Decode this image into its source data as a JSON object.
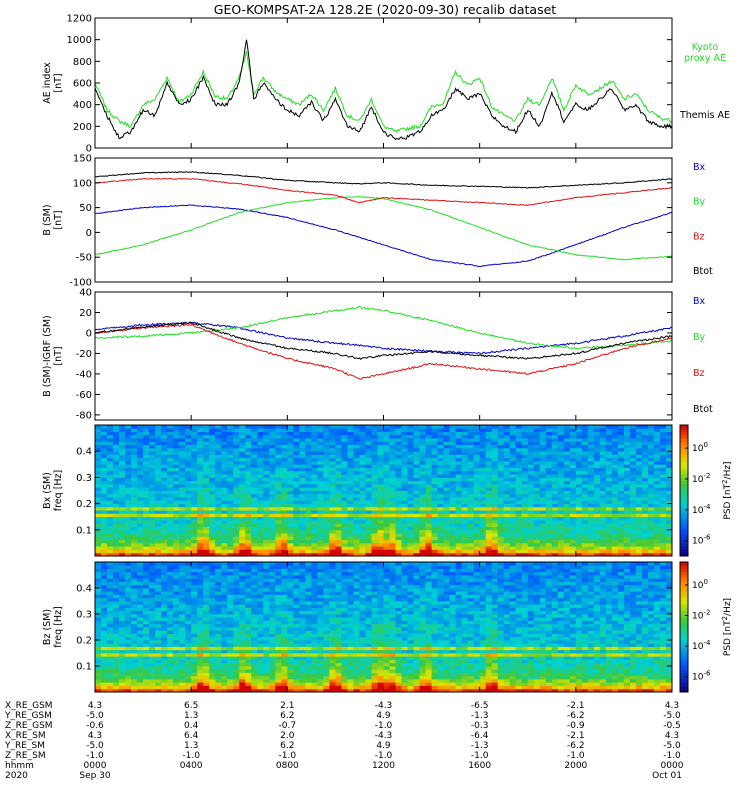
{
  "title": "GEO-KOMPSAT-2A 128.2E (2020-09-30) recalib dataset",
  "colors": {
    "black": "#000000",
    "blue": "#0000cc",
    "green": "#22dd22",
    "red": "#dd1111"
  },
  "chart_data": [
    {
      "type": "line",
      "ylabel_lines": [
        "AE index",
        "[nT]"
      ],
      "ylim": [
        0,
        1200
      ],
      "yticks": [
        0,
        200,
        400,
        600,
        800,
        1000,
        1200
      ],
      "legend_placement": "right",
      "series": [
        {
          "name": "Kyoto\nproxy AE",
          "color": "#22dd22",
          "x": [
            0,
            0.5,
            1,
            1.5,
            2,
            2.5,
            3,
            3.5,
            4,
            4.5,
            5,
            5.5,
            6,
            6.3,
            6.6,
            7,
            7.5,
            8,
            8.5,
            9,
            9.5,
            10,
            10.5,
            11,
            11.5,
            12,
            12.5,
            13,
            13.5,
            14,
            14.5,
            15,
            15.5,
            16,
            16.5,
            17,
            17.5,
            18,
            18.5,
            19,
            19.5,
            20,
            20.5,
            21,
            21.5,
            22,
            22.5,
            23,
            23.5,
            24
          ],
          "values": [
            600,
            350,
            250,
            200,
            400,
            450,
            650,
            420,
            500,
            700,
            480,
            450,
            650,
            880,
            500,
            650,
            520,
            450,
            400,
            500,
            350,
            550,
            300,
            250,
            450,
            200,
            150,
            180,
            200,
            380,
            420,
            700,
            580,
            650,
            380,
            300,
            250,
            450,
            400,
            650,
            350,
            580,
            500,
            550,
            620,
            450,
            500,
            350,
            280,
            250
          ]
        },
        {
          "name": "Themis AE",
          "color": "#000000",
          "x": [
            0,
            0.5,
            1,
            1.5,
            2,
            2.5,
            3,
            3.5,
            4,
            4.5,
            5,
            5.5,
            6,
            6.3,
            6.6,
            7,
            7.5,
            8,
            8.5,
            9,
            9.5,
            10,
            10.5,
            11,
            11.5,
            12,
            12.5,
            13,
            13.5,
            14,
            14.5,
            15,
            15.5,
            16,
            16.5,
            17,
            17.5,
            18,
            18.5,
            19,
            19.5,
            20,
            20.5,
            21,
            21.5,
            22,
            22.5,
            23,
            23.5,
            24
          ],
          "values": [
            550,
            300,
            100,
            150,
            350,
            300,
            600,
            400,
            450,
            650,
            400,
            400,
            600,
            1000,
            450,
            600,
            450,
            350,
            300,
            420,
            250,
            450,
            200,
            150,
            380,
            150,
            80,
            100,
            150,
            300,
            350,
            550,
            450,
            500,
            300,
            200,
            150,
            350,
            200,
            520,
            250,
            400,
            350,
            450,
            550,
            350,
            400,
            250,
            200,
            200
          ]
        }
      ]
    },
    {
      "type": "line",
      "ylabel_lines": [
        "B (SM)",
        "[nT]"
      ],
      "ylim": [
        -100,
        150
      ],
      "yticks": [
        -100,
        -50,
        0,
        50,
        100,
        150
      ],
      "legend_placement": "right",
      "series": [
        {
          "name": "Bx",
          "color": "#0000cc",
          "x": [
            0,
            2,
            4,
            6,
            8,
            10,
            11,
            12,
            14,
            16,
            18,
            20,
            22,
            24
          ],
          "values": [
            38,
            50,
            55,
            47,
            30,
            5,
            -10,
            -25,
            -55,
            -68,
            -58,
            -25,
            10,
            40
          ]
        },
        {
          "name": "By",
          "color": "#22dd22",
          "x": [
            0,
            2,
            4,
            6,
            8,
            10,
            11,
            12,
            14,
            16,
            18,
            20,
            22,
            24
          ],
          "values": [
            -45,
            -25,
            5,
            40,
            60,
            70,
            72,
            68,
            45,
            10,
            -25,
            -45,
            -55,
            -48
          ]
        },
        {
          "name": "Bz",
          "color": "#dd1111",
          "x": [
            0,
            2,
            4,
            6,
            8,
            10,
            11,
            12,
            14,
            16,
            18,
            20,
            22,
            24
          ],
          "values": [
            100,
            108,
            108,
            98,
            85,
            75,
            60,
            70,
            65,
            60,
            55,
            70,
            80,
            90
          ]
        },
        {
          "name": "Btot",
          "color": "#000000",
          "x": [
            0,
            2,
            4,
            6,
            8,
            10,
            11,
            12,
            14,
            16,
            18,
            20,
            22,
            24
          ],
          "values": [
            112,
            120,
            122,
            115,
            105,
            100,
            98,
            100,
            95,
            93,
            90,
            95,
            100,
            108
          ]
        }
      ]
    },
    {
      "type": "line",
      "ylabel_lines": [
        "B (SM)-IGRF (SM)",
        "[nT]"
      ],
      "ylim": [
        -85,
        40
      ],
      "yticks": [
        -80,
        -60,
        -40,
        -20,
        0,
        20,
        40
      ],
      "legend_placement": "right",
      "series": [
        {
          "name": "Bx",
          "color": "#0000cc",
          "x": [
            0,
            2,
            4,
            6,
            8,
            10,
            11,
            12,
            14,
            16,
            18,
            20,
            22,
            24
          ],
          "values": [
            3,
            8,
            10,
            5,
            -5,
            -10,
            -12,
            -15,
            -18,
            -20,
            -15,
            -10,
            -3,
            5
          ]
        },
        {
          "name": "By",
          "color": "#22dd22",
          "x": [
            0,
            2,
            4,
            6,
            8,
            10,
            11,
            12,
            14,
            16,
            18,
            20,
            22,
            24
          ],
          "values": [
            -5,
            -3,
            0,
            5,
            15,
            22,
            25,
            22,
            12,
            0,
            -10,
            -15,
            -12,
            -8
          ]
        },
        {
          "name": "Bz",
          "color": "#dd1111",
          "x": [
            0,
            2,
            4,
            6,
            8,
            10,
            11,
            12,
            14,
            16,
            18,
            20,
            22,
            24
          ],
          "values": [
            0,
            5,
            8,
            -10,
            -25,
            -35,
            -45,
            -40,
            -30,
            -35,
            -40,
            -30,
            -15,
            -5
          ]
        },
        {
          "name": "Btot",
          "color": "#000000",
          "x": [
            0,
            2,
            4,
            6,
            8,
            10,
            11,
            12,
            14,
            16,
            18,
            20,
            22,
            24
          ],
          "values": [
            0,
            6,
            10,
            -5,
            -15,
            -20,
            -25,
            -22,
            -18,
            -22,
            -25,
            -20,
            -10,
            -3
          ]
        }
      ]
    },
    {
      "type": "heatmap",
      "component": "Bx (SM)",
      "ylabel_lines": [
        "Bx (SM)",
        "freq [Hz]"
      ],
      "ylim": [
        0,
        0.5
      ],
      "yticks": [
        0.1,
        0.2,
        0.3,
        0.4
      ],
      "colorbar_label": "PSD [nT^2/Hz]",
      "colorbar_ticks": [
        "10^0",
        "10^-2",
        "10^-4",
        "10^-6"
      ],
      "colorbar_values": [
        0,
        -2,
        -4,
        -6
      ],
      "colorbar_range": [
        -7,
        1.5
      ],
      "bands_hz": [
        0.16,
        0.18
      ],
      "bursts_hours": [
        4.5,
        6.2,
        7.8,
        10,
        11.8,
        12.3,
        13.8,
        16.5
      ]
    },
    {
      "type": "heatmap",
      "component": "Bz (SM)",
      "ylabel_lines": [
        "Bz (SM)",
        "freq [Hz]"
      ],
      "ylim": [
        0,
        0.5
      ],
      "yticks": [
        0.1,
        0.2,
        0.3,
        0.4
      ],
      "colorbar_label": "PSD [nT^2/Hz]",
      "colorbar_ticks": [
        "10^0",
        "10^-2",
        "10^-4",
        "10^-6"
      ],
      "colorbar_values": [
        0,
        -2,
        -4,
        -6
      ],
      "colorbar_range": [
        -7,
        1.5
      ],
      "bands_hz": [
        0.14,
        0.17
      ],
      "bursts_hours": [
        4.5,
        6.2,
        7.8,
        10,
        11.8,
        12.3,
        13.8,
        16.5
      ]
    }
  ],
  "ephemeris": {
    "rows": [
      {
        "label": "X_RE_GSM",
        "values": [
          "4.3",
          "6.5",
          "2.1",
          "-4.3",
          "-6.5",
          "-2.1",
          "4.3"
        ]
      },
      {
        "label": "Y_RE_GSM",
        "values": [
          "-5.0",
          "1.3",
          "6.2",
          "4.9",
          "-1.3",
          "-6.2",
          "-5.0"
        ]
      },
      {
        "label": "Z_RE_GSM",
        "values": [
          "-0.6",
          "0.4",
          "-0.7",
          "-1.0",
          "-0.3",
          "-0.9",
          "-0.5"
        ]
      },
      {
        "label": "X_RE_SM",
        "values": [
          "4.3",
          "6.4",
          "2.0",
          "-4.3",
          "-6.4",
          "-2.1",
          "4.3"
        ]
      },
      {
        "label": "Y_RE_SM",
        "values": [
          "-5.0",
          "1.3",
          "6.2",
          "4.9",
          "-1.3",
          "-6.2",
          "-5.0"
        ]
      },
      {
        "label": "Z_RE_SM",
        "values": [
          "-1.0",
          "-1.0",
          "-1.0",
          "-1.0",
          "-1.0",
          "-1.0",
          "-1.0"
        ]
      },
      {
        "label": "hhmm",
        "values": [
          "0000",
          "0400",
          "0800",
          "1200",
          "1600",
          "2000",
          "0000"
        ]
      },
      {
        "label": "2020",
        "values": [
          "Sep 30",
          "",
          "",
          "",
          "",
          "",
          "Oct 01"
        ]
      }
    ],
    "tick_hours": [
      0,
      4,
      8,
      12,
      16,
      20,
      24
    ]
  }
}
